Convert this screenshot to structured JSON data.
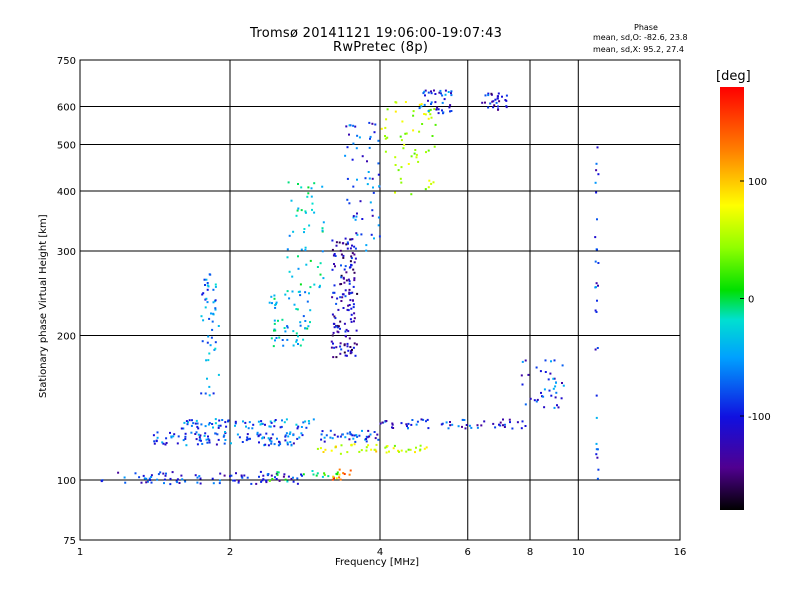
{
  "header": {
    "title": "Tromsø 20141121 19:06:00-19:07:43",
    "subtitle": "RwPretec (8p)",
    "stats_title": "Phase",
    "stats_o": "mean, sd,O: -82.6, 23.8",
    "stats_x": "mean, sd,X:  95.2, 27.4"
  },
  "colorbar": {
    "unit": "[deg]",
    "range": [
      -180,
      180
    ],
    "ticks": [
      {
        "value": 100,
        "label": "100"
      },
      {
        "value": 0,
        "label": "0"
      },
      {
        "value": -100,
        "label": "-100"
      }
    ]
  },
  "chart_data": {
    "type": "scatter",
    "title": "Tromsø 20141121 19:06:00-19:07:43",
    "subtitle": "RwPretec (8p)",
    "xlabel": "Frequency [MHz]",
    "ylabel": "Stationary phase Virtual Height [km]",
    "x_scale": "log",
    "y_scale": "log",
    "xlim": [
      1,
      16
    ],
    "ylim": [
      75,
      750
    ],
    "x_ticks": [
      1,
      2,
      4,
      6,
      8,
      10,
      16
    ],
    "y_ticks": [
      75,
      100,
      200,
      300,
      400,
      500,
      600,
      750
    ],
    "grid": true,
    "color_by": "Phase [deg]",
    "clusters": [
      {
        "f": [
          1.1,
          2.8
        ],
        "h": [
          98,
          104
        ],
        "phase": -110,
        "n": 90
      },
      {
        "f": [
          2.4,
          3.3
        ],
        "h": [
          99,
          105
        ],
        "phase": -10,
        "n": 20
      },
      {
        "f": [
          3.2,
          3.5
        ],
        "h": [
          100,
          106
        ],
        "phase": 130,
        "n": 12
      },
      {
        "f": [
          1.4,
          2.8
        ],
        "h": [
          118,
          126
        ],
        "phase": -95,
        "n": 110
      },
      {
        "f": [
          1.6,
          3.0
        ],
        "h": [
          128,
          134
        ],
        "phase": -80,
        "n": 70
      },
      {
        "f": [
          3.0,
          4.0
        ],
        "h": [
          120,
          127
        ],
        "phase": -100,
        "n": 40
      },
      {
        "f": [
          3.0,
          4.0
        ],
        "h": [
          113,
          119
        ],
        "phase": 80,
        "n": 25
      },
      {
        "f": [
          4.0,
          8.0
        ],
        "h": [
          128,
          134
        ],
        "phase": -110,
        "n": 60
      },
      {
        "f": [
          4.0,
          5.0
        ],
        "h": [
          114,
          118
        ],
        "phase": 60,
        "n": 20
      },
      {
        "f": [
          1.75,
          1.9
        ],
        "h": [
          150,
          270
        ],
        "phase": -75,
        "n": 50
      },
      {
        "f": [
          2.4,
          2.9
        ],
        "h": [
          190,
          250
        ],
        "phase": -50,
        "n": 60
      },
      {
        "f": [
          2.6,
          3.1
        ],
        "h": [
          250,
          420
        ],
        "phase": -40,
        "n": 50
      },
      {
        "f": [
          3.2,
          3.6
        ],
        "h": [
          180,
          320
        ],
        "phase": -130,
        "n": 150
      },
      {
        "f": [
          3.4,
          4.0
        ],
        "h": [
          300,
          560
        ],
        "phase": -100,
        "n": 60
      },
      {
        "f": [
          4.0,
          5.2
        ],
        "h": [
          380,
          620
        ],
        "phase": 60,
        "n": 60
      },
      {
        "f": [
          4.8,
          5.6
        ],
        "h": [
          580,
          650
        ],
        "phase": -100,
        "n": 40
      },
      {
        "f": [
          6.4,
          7.2
        ],
        "h": [
          590,
          640
        ],
        "phase": -120,
        "n": 30
      },
      {
        "f": [
          10.8,
          11.0
        ],
        "h": [
          100,
          500
        ],
        "phase": -100,
        "n": 30
      },
      {
        "f": [
          7.7,
          9.4
        ],
        "h": [
          140,
          180
        ],
        "phase": -100,
        "n": 40
      }
    ]
  }
}
